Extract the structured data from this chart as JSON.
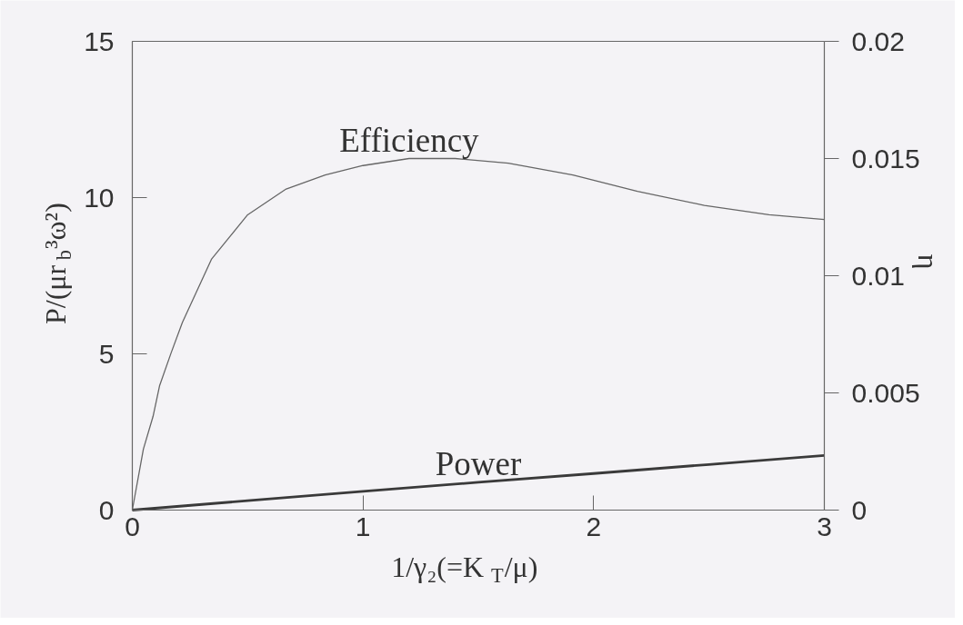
{
  "chart_data": {
    "type": "line",
    "xlabel": "1/γ₂(=K$_{T}$/μ)",
    "ylabel": "P/(μr$_{b}$³ω²)",
    "y2label": "η",
    "xlim": [
      0,
      3
    ],
    "xticks": [
      0,
      1,
      2,
      3
    ],
    "ylim": [
      0,
      15
    ],
    "yticks": [
      0,
      5,
      10,
      15
    ],
    "y2lim": [
      0,
      0.02
    ],
    "y2ticks": [
      0,
      0.005,
      0.01,
      0.015,
      0.02
    ],
    "grid": false,
    "legend": false,
    "marker": "none",
    "line_style": "solid",
    "series": [
      {
        "name": "Efficiency",
        "axis": "y2",
        "color": "#666666",
        "x": [
          0,
          0.048,
          0.09,
          0.118,
          0.168,
          0.217,
          0.343,
          0.5,
          0.667,
          0.836,
          1.0,
          1.2,
          1.4,
          1.63,
          1.91,
          2.19,
          2.48,
          2.76,
          3.0
        ],
        "values": [
          0,
          0.0026,
          0.004,
          0.0053,
          0.0067,
          0.008,
          0.0107,
          0.0126,
          0.0137,
          0.0143,
          0.0147,
          0.015,
          0.015,
          0.0148,
          0.0143,
          0.0136,
          0.013,
          0.0126,
          0.0124
        ]
      },
      {
        "name": "Power",
        "color": "#3a3a3a",
        "x": [
          0,
          0.5,
          1,
          1.5,
          2,
          2.5,
          3
        ],
        "values": [
          0,
          0.3,
          0.6,
          0.89,
          1.17,
          1.46,
          1.75
        ]
      }
    ]
  }
}
